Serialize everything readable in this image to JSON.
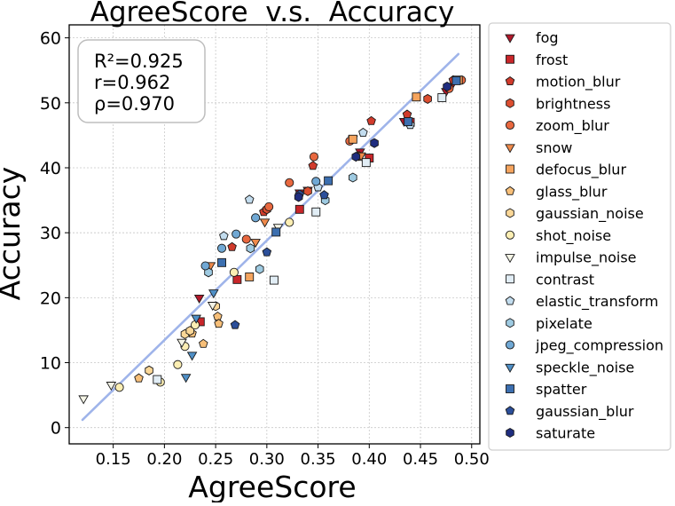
{
  "chart_data": {
    "type": "scatter",
    "title": "AgreeScore  v.s.  Accuracy",
    "xlabel": "AgreeScore",
    "ylabel": "Accuracy",
    "xlim": [
      0.107,
      0.508
    ],
    "ylim": [
      -2.5,
      62
    ],
    "xticks": [
      0.15,
      0.2,
      0.25,
      0.3,
      0.35,
      0.4,
      0.45,
      0.5
    ],
    "xtick_labels": [
      "0.15",
      "0.20",
      "0.25",
      "0.30",
      "0.35",
      "0.40",
      "0.45",
      "0.50"
    ],
    "yticks": [
      0,
      10,
      20,
      30,
      40,
      50,
      60
    ],
    "ytick_labels": [
      "0",
      "10",
      "20",
      "30",
      "40",
      "50",
      "60"
    ],
    "grid": true,
    "legend_position": "right-outside",
    "stats": [
      "R²=0.925",
      "r=0.962",
      "ρ=0.970"
    ],
    "fit_line": {
      "x": [
        0.12,
        0.487
      ],
      "y": [
        1.2,
        57.5
      ],
      "color": "#9fb4ea"
    },
    "series": [
      {
        "name": "fog",
        "marker": "triangle-down",
        "color": "#b2182b",
        "x": [
          0.234,
          0.332,
          0.34,
          0.391,
          0.434,
          0.475,
          0.48
        ],
        "y": [
          20.0,
          36.2,
          36.6,
          42.5,
          47.2,
          51.8,
          52.6
        ]
      },
      {
        "name": "frost",
        "marker": "square",
        "color": "#c9262a",
        "x": [
          0.235,
          0.271,
          0.332,
          0.4,
          0.44
        ],
        "y": [
          16.3,
          22.8,
          33.6,
          41.5,
          47.0
        ]
      },
      {
        "name": "motion_blur",
        "marker": "pentagon",
        "color": "#d13b2c",
        "x": [
          0.266,
          0.297,
          0.345,
          0.402,
          0.437,
          0.482
        ],
        "y": [
          27.8,
          33.2,
          40.3,
          47.2,
          48.2,
          53.5
        ]
      },
      {
        "name": "brightness",
        "marker": "hexagon",
        "color": "#dc4e30",
        "x": [
          0.3,
          0.34,
          0.39,
          0.457
        ],
        "y": [
          33.6,
          36.4,
          41.8,
          50.6
        ]
      },
      {
        "name": "zoom_blur",
        "marker": "circle",
        "color": "#e8683f",
        "x": [
          0.28,
          0.302,
          0.322,
          0.346,
          0.381,
          0.478,
          0.49
        ],
        "y": [
          29.0,
          34.0,
          37.7,
          41.7,
          44.1,
          52.2,
          53.5
        ]
      },
      {
        "name": "snow",
        "marker": "triangle-down",
        "color": "#f08a4b",
        "x": [
          0.245,
          0.289,
          0.298,
          0.384,
          0.392
        ],
        "y": [
          25.0,
          28.6,
          31.7,
          44.5,
          41.9
        ]
      },
      {
        "name": "defocus_blur",
        "marker": "square",
        "color": "#f5a45e",
        "x": [
          0.283,
          0.384,
          0.446,
          0.487
        ],
        "y": [
          23.2,
          44.4,
          50.9,
          53.5
        ]
      },
      {
        "name": "glass_blur",
        "marker": "pentagon",
        "color": "#f7bf79",
        "x": [
          0.175,
          0.227,
          0.238,
          0.252,
          0.253
        ],
        "y": [
          7.6,
          14.5,
          12.9,
          17.1,
          16.0
        ]
      },
      {
        "name": "gaussian_noise",
        "marker": "hexagon",
        "color": "#fad797",
        "x": [
          0.185,
          0.22,
          0.225,
          0.25
        ],
        "y": [
          8.8,
          14.4,
          14.9,
          18.7
        ]
      },
      {
        "name": "shot_noise",
        "marker": "circle",
        "color": "#fceeb3",
        "x": [
          0.156,
          0.196,
          0.213,
          0.22,
          0.23,
          0.268,
          0.322
        ],
        "y": [
          6.2,
          7.0,
          9.7,
          12.5,
          15.8,
          23.9,
          31.6
        ]
      },
      {
        "name": "impulse_noise",
        "marker": "triangle-down",
        "color": "#f5f5e6",
        "x": [
          0.121,
          0.148,
          0.217,
          0.247,
          0.311
        ],
        "y": [
          4.5,
          6.6,
          13.2,
          18.9,
          30.9
        ]
      },
      {
        "name": "contrast",
        "marker": "square",
        "color": "#e1edf5",
        "x": [
          0.193,
          0.307,
          0.348,
          0.397,
          0.471
        ],
        "y": [
          7.4,
          22.7,
          33.2,
          40.8,
          50.8
        ]
      },
      {
        "name": "elastic_transform",
        "marker": "pentagon",
        "color": "#c2dcee",
        "x": [
          0.258,
          0.283,
          0.35,
          0.394,
          0.44
        ],
        "y": [
          29.5,
          35.1,
          37.0,
          45.4,
          46.6
        ]
      },
      {
        "name": "pixelate",
        "marker": "hexagon",
        "color": "#9ecae1",
        "x": [
          0.243,
          0.284,
          0.293,
          0.357,
          0.384
        ],
        "y": [
          23.9,
          27.6,
          24.4,
          35.0,
          38.5
        ]
      },
      {
        "name": "jpeg_compression",
        "marker": "circle",
        "color": "#70a8d4",
        "x": [
          0.24,
          0.256,
          0.27,
          0.289,
          0.348
        ],
        "y": [
          24.9,
          27.6,
          29.8,
          32.3,
          37.9
        ]
      },
      {
        "name": "speckle_noise",
        "marker": "triangle-down",
        "color": "#4f8fc6",
        "x": [
          0.221,
          0.227,
          0.231,
          0.248
        ],
        "y": [
          7.8,
          11.2,
          16.9,
          20.8
        ]
      },
      {
        "name": "spatter",
        "marker": "square",
        "color": "#3c6fb0",
        "x": [
          0.256,
          0.309,
          0.36,
          0.438,
          0.485
        ],
        "y": [
          25.4,
          30.1,
          38.0,
          47.1,
          53.4
        ]
      },
      {
        "name": "gaussian_blur",
        "marker": "pentagon",
        "color": "#2c4f9a",
        "x": [
          0.269,
          0.3,
          0.332,
          0.356
        ],
        "y": [
          15.8,
          27.0,
          35.9,
          35.8
        ]
      },
      {
        "name": "saturate",
        "marker": "hexagon",
        "color": "#1f2d7f",
        "x": [
          0.331,
          0.387,
          0.405,
          0.476
        ],
        "y": [
          35.5,
          41.7,
          43.8,
          52.5
        ]
      }
    ]
  }
}
